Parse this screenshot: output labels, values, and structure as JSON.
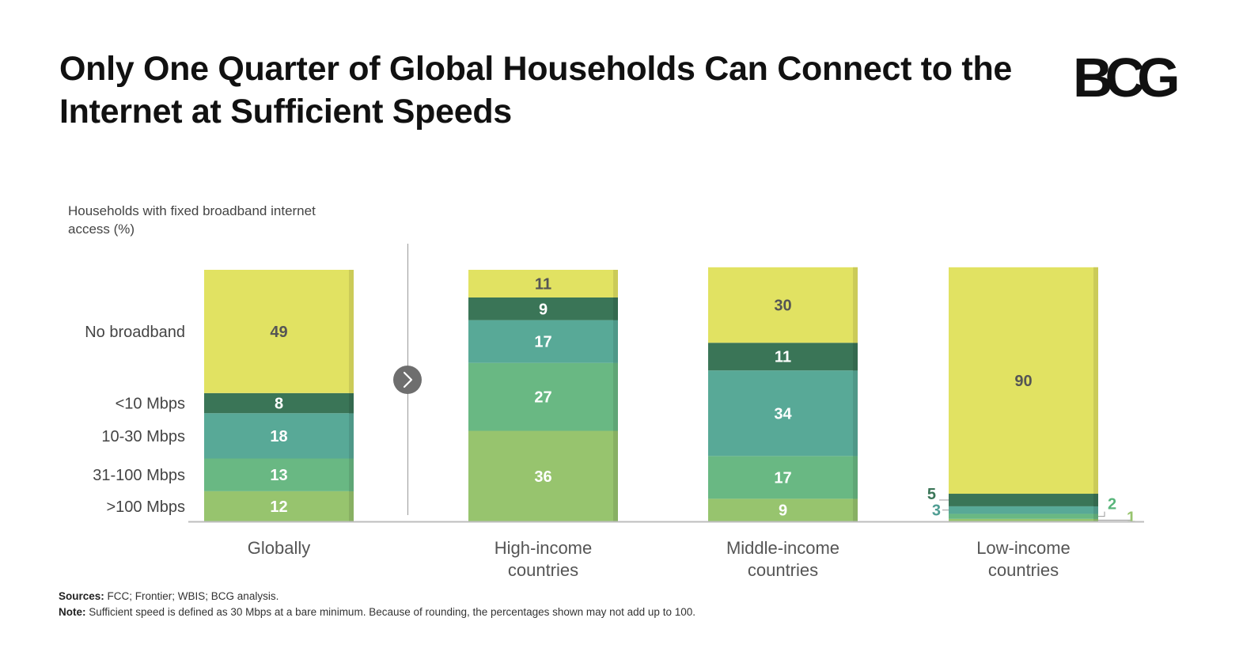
{
  "title": "Only One Quarter of Global Households Can Connect to the Internet at Sufficient Speeds",
  "brand": {
    "logo_text": "BCG"
  },
  "axis_caption": "Households with fixed broadband internet access (%)",
  "footer": {
    "sources_label": "Sources:",
    "sources_text": " FCC; Frontier; WBIS; BCG analysis.",
    "note_label": "Note:",
    "note_text": " Sufficient speed is defined as 30 Mbps at a bare minimum. Because of rounding, the percentages shown may not add up to 100."
  },
  "chart_data": {
    "type": "bar",
    "stacked": true,
    "ylabel": "Households with fixed broadband internet access (%)",
    "ylim": [
      0,
      100
    ],
    "grid": false,
    "categories": [
      "Globally",
      "High-income countries",
      "Middle-income countries",
      "Low-income countries"
    ],
    "category_lines": [
      [
        "Globally"
      ],
      [
        "High-income",
        "countries"
      ],
      [
        "Middle-income",
        "countries"
      ],
      [
        "Low-income",
        "countries"
      ]
    ],
    "series": [
      {
        "name": ">100 Mbps",
        "values": [
          12,
          36,
          9,
          1
        ],
        "color": "#97c46e",
        "label_color": "#ffffff"
      },
      {
        "name": "31-100 Mbps",
        "values": [
          13,
          27,
          17,
          2
        ],
        "color": "#69b883",
        "label_color": "#ffffff"
      },
      {
        "name": "10-30 Mbps",
        "values": [
          18,
          17,
          34,
          3
        ],
        "color": "#58a997",
        "label_color": "#ffffff"
      },
      {
        "name": "<10 Mbps",
        "values": [
          8,
          9,
          11,
          5
        ],
        "color": "#3a7557",
        "label_color": "#ffffff"
      },
      {
        "name": "No broadband",
        "values": [
          49,
          11,
          30,
          90
        ],
        "color": "#e1e262",
        "label_color": "#555555"
      }
    ],
    "outside_label_colors": {
      ">100 Mbps": "#97c46e",
      "31-100 Mbps": "#58b57a",
      "10-30 Mbps": "#4f9d93",
      "<10 Mbps": "#3a7557"
    }
  }
}
